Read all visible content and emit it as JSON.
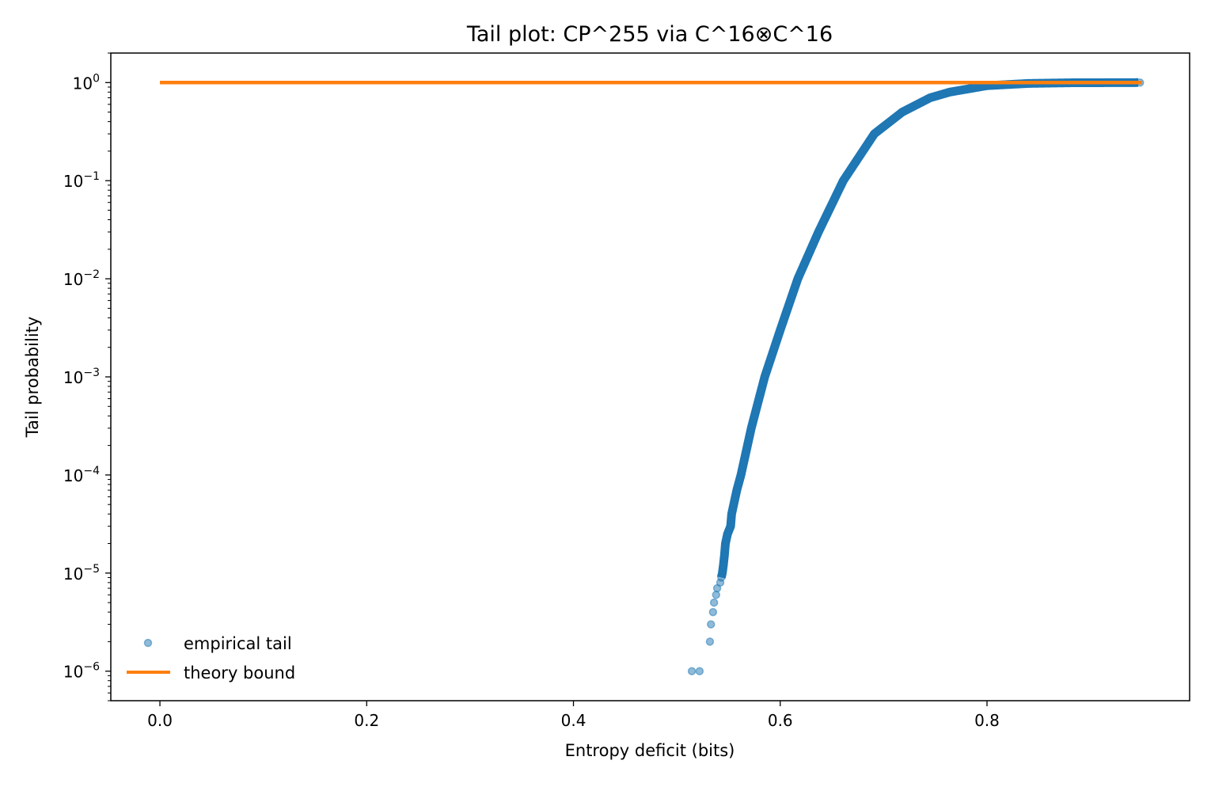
{
  "chart_data": {
    "type": "scatter",
    "title": "Tail plot: CP^255 via C^16⊗C^16",
    "xlabel": "Entropy deficit (bits)",
    "ylabel": "Tail probability",
    "xlim": [
      -0.0475,
      0.996
    ],
    "ylim": [
      5e-07,
      2.0
    ],
    "yscale": "log",
    "grid": false,
    "legend_placement": "lower-left",
    "x_ticks": [
      {
        "value": 0.0,
        "label": "0.0"
      },
      {
        "value": 0.2,
        "label": "0.2"
      },
      {
        "value": 0.4,
        "label": "0.4"
      },
      {
        "value": 0.6,
        "label": "0.6"
      },
      {
        "value": 0.8,
        "label": "0.8"
      }
    ],
    "y_ticks": [
      {
        "exp": 0,
        "label": "10",
        "sup": "0"
      },
      {
        "exp": -1,
        "label": "10",
        "sup": "−1"
      },
      {
        "exp": -2,
        "label": "10",
        "sup": "−2"
      },
      {
        "exp": -3,
        "label": "10",
        "sup": "−3"
      },
      {
        "exp": -4,
        "label": "10",
        "sup": "−4"
      },
      {
        "exp": -5,
        "label": "10",
        "sup": "−5"
      },
      {
        "exp": -6,
        "label": "10",
        "sup": "−6"
      }
    ],
    "series": [
      {
        "name": "empirical tail",
        "kind": "markers",
        "color": "#1f77b4",
        "points": [
          [
            0.5145,
            1e-06
          ],
          [
            0.522,
            1e-06
          ],
          [
            0.532,
            2e-06
          ],
          [
            0.533,
            3e-06
          ],
          [
            0.535,
            4e-06
          ],
          [
            0.536,
            5e-06
          ],
          [
            0.538,
            6e-06
          ],
          [
            0.539,
            7e-06
          ],
          [
            0.542,
            8e-06
          ],
          [
            0.543,
            9e-06
          ],
          [
            0.544,
            1e-05
          ],
          [
            0.545,
            1.2e-05
          ],
          [
            0.546,
            1.5e-05
          ],
          [
            0.547,
            2e-05
          ],
          [
            0.549,
            2.5e-05
          ],
          [
            0.552,
            3e-05
          ],
          [
            0.553,
            4e-05
          ],
          [
            0.555,
            5e-05
          ],
          [
            0.558,
            7e-05
          ],
          [
            0.562,
            0.0001
          ],
          [
            0.572,
            0.0003
          ],
          [
            0.585,
            0.001
          ],
          [
            0.6,
            0.003
          ],
          [
            0.617,
            0.01
          ],
          [
            0.637,
            0.03
          ],
          [
            0.661,
            0.1
          ],
          [
            0.691,
            0.3
          ],
          [
            0.718,
            0.5
          ],
          [
            0.745,
            0.7
          ],
          [
            0.764,
            0.8
          ],
          [
            0.8,
            0.93
          ],
          [
            0.84,
            0.98
          ],
          [
            0.88,
            0.995
          ],
          [
            0.948,
            1.0
          ]
        ]
      },
      {
        "name": "theory bound",
        "kind": "line",
        "color": "#ff7f0e",
        "points": [
          [
            0.0,
            1.0
          ],
          [
            0.95,
            1.0
          ]
        ]
      }
    ]
  }
}
